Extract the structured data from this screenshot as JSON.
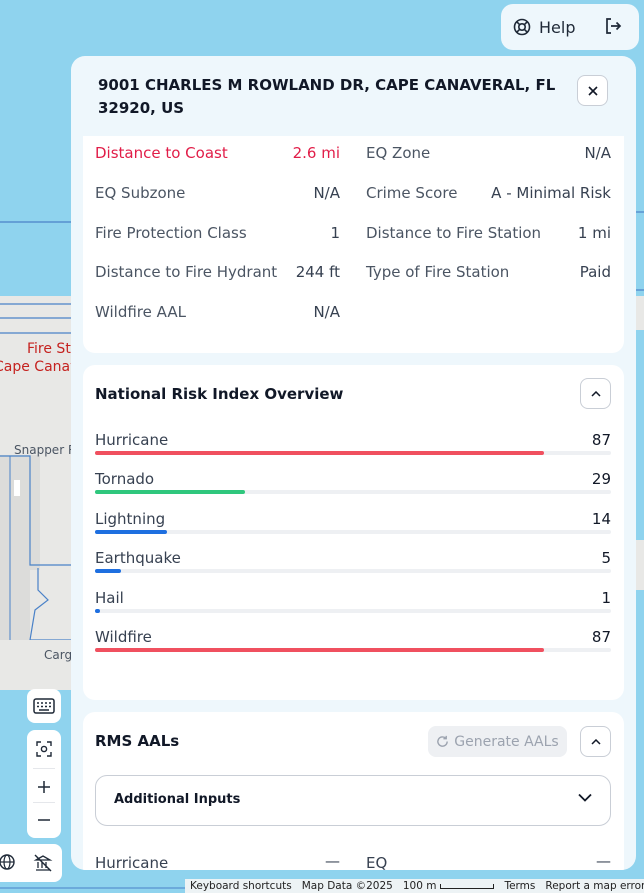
{
  "top_bar": {
    "help_label": "Help"
  },
  "panel": {
    "address": "9001 CHARLES M ROWLAND DR, CAPE CANAVERAL, FL 32920, US",
    "attributes": [
      {
        "label": "Distance to Coast",
        "value": "2.6 mi",
        "highlight": true
      },
      {
        "label": "EQ Zone",
        "value": "N/A"
      },
      {
        "label": "EQ Subzone",
        "value": "N/A"
      },
      {
        "label": "Crime Score",
        "value": "A - Minimal Risk"
      },
      {
        "label": "Fire Protection Class",
        "value": "1"
      },
      {
        "label": "Distance to Fire Station",
        "value": "1 mi"
      },
      {
        "label": "Distance to Fire Hydrant",
        "value": "244 ft"
      },
      {
        "label": "Type of Fire Station",
        "value": "Paid"
      },
      {
        "label": "Wildfire AAL",
        "value": "N/A"
      }
    ],
    "nri": {
      "title": "National Risk Index Overview",
      "risks": [
        {
          "label": "Hurricane",
          "value": "87",
          "score": 87,
          "color": "#f0505f"
        },
        {
          "label": "Tornado",
          "value": "29",
          "score": 29,
          "color": "#2fc77d"
        },
        {
          "label": "Lightning",
          "value": "14",
          "score": 14,
          "color": "#1e6fe0"
        },
        {
          "label": "Earthquake",
          "value": "5",
          "score": 5,
          "color": "#1e6fe0"
        },
        {
          "label": "Hail",
          "value": "1",
          "score": 1,
          "color": "#1e6fe0"
        },
        {
          "label": "Wildfire",
          "value": "87",
          "score": 87,
          "color": "#f0505f"
        }
      ]
    },
    "rms": {
      "title": "RMS AALs",
      "generate_label": "Generate AALs",
      "additional_inputs_label": "Additional Inputs",
      "rows": [
        {
          "label": "Hurricane",
          "value": "—"
        },
        {
          "label": "EQ",
          "value": "—"
        }
      ]
    }
  },
  "map": {
    "labels": {
      "fire_station": "Fire St",
      "cape_canaveral": "Cape Canav",
      "snapper": "Snapper R",
      "cargo": "Carg"
    }
  },
  "attribution": {
    "keyboard_shortcuts": "Keyboard shortcuts",
    "map_data": "Map Data ©2025",
    "scale": "100 m",
    "terms": "Terms",
    "report": "Report a map error"
  },
  "colors": {
    "accent_red": "#e11d48",
    "panel_bg": "#eef7fc",
    "water": "#8fd3ee",
    "land": "#e8e8e6"
  }
}
